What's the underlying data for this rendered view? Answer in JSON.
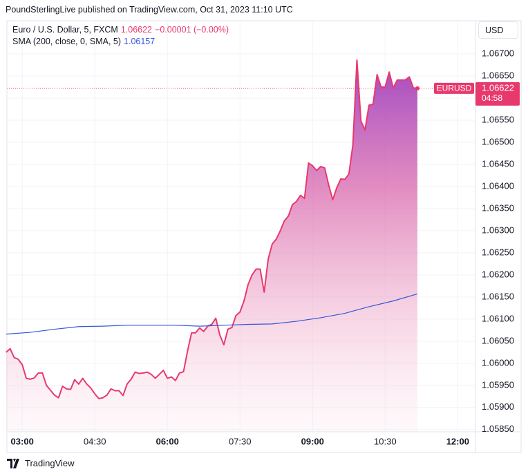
{
  "brand": "TradingView",
  "chart_data": {
    "type": "line",
    "title": "PoundSterlingLive published on TradingView.com, Oct 31, 2023 11:10 UTC",
    "currency": "USD",
    "symbol": "EURUSD",
    "countdown": "04:58",
    "change": "−0.00001 (−0.00%)",
    "x": [
      160,
      165,
      170,
      175,
      180,
      185,
      190,
      195,
      200,
      205,
      210,
      215,
      220,
      225,
      230,
      235,
      240,
      245,
      250,
      255,
      260,
      265,
      270,
      275,
      280,
      285,
      290,
      295,
      300,
      305,
      310,
      315,
      320,
      325,
      330,
      335,
      340,
      345,
      350,
      355,
      360,
      365,
      370,
      375,
      380,
      385,
      390,
      395,
      400,
      405,
      410,
      415,
      420,
      425,
      430,
      435,
      440,
      445,
      450,
      455,
      460,
      465,
      470,
      475,
      480,
      485,
      490,
      495,
      500,
      505,
      510,
      515,
      520,
      525,
      530,
      535,
      540,
      545,
      550,
      555,
      560,
      565,
      570,
      575,
      580,
      585,
      590,
      595,
      600,
      605,
      610,
      615,
      620,
      625,
      630,
      635,
      640,
      645,
      650,
      655,
      660,
      665,
      670
    ],
    "series": [
      {
        "name": "Euro / U.S. Dollar, 5, FXCM",
        "color": "#e8396d",
        "values": [
          1.06025,
          1.06033,
          1.06013,
          1.06009,
          1.05997,
          1.05966,
          1.05964,
          1.05967,
          1.05978,
          1.05978,
          1.0595,
          1.05939,
          1.05928,
          1.05922,
          1.05948,
          1.05942,
          1.05941,
          1.05963,
          1.05953,
          1.05966,
          1.05953,
          1.05944,
          1.05931,
          1.0592,
          1.05922,
          1.05928,
          1.05942,
          1.05938,
          1.05938,
          1.05927,
          1.05953,
          1.05964,
          1.0598,
          1.05977,
          1.05978,
          1.0598,
          1.05975,
          1.05966,
          1.05975,
          1.05984,
          1.05966,
          1.05969,
          1.05961,
          1.05978,
          1.05981,
          1.06028,
          1.06069,
          1.06069,
          1.0608,
          1.06072,
          1.06084,
          1.06088,
          1.06102,
          1.06064,
          1.06042,
          1.06077,
          1.06081,
          1.06108,
          1.06116,
          1.06141,
          1.06178,
          1.062,
          1.06213,
          1.06213,
          1.06161,
          1.06236,
          1.0627,
          1.06281,
          1.063,
          1.06322,
          1.06333,
          1.06359,
          1.06366,
          1.0638,
          1.06373,
          1.06453,
          1.06447,
          1.06436,
          1.06445,
          1.06442,
          1.06403,
          1.0637,
          1.06397,
          1.06417,
          1.06416,
          1.06428,
          1.06494,
          1.06686,
          1.06548,
          1.06528,
          1.06584,
          1.06586,
          1.06653,
          1.06625,
          1.06625,
          1.06659,
          1.06623,
          1.06641,
          1.06641,
          1.06641,
          1.06648,
          1.06623,
          1.06622
        ]
      },
      {
        "name": "SMA (200, close, 0, SMA, 5)",
        "color": "#3455db",
        "x": [
          160,
          190,
          220,
          250,
          280,
          310,
          340,
          370,
          400,
          430,
          460,
          490,
          520,
          550,
          580,
          610,
          640,
          670
        ],
        "values": [
          1.06066,
          1.0607,
          1.06077,
          1.06083,
          1.06084,
          1.06086,
          1.06086,
          1.06086,
          1.06084,
          1.06086,
          1.06088,
          1.06089,
          1.06095,
          1.06103,
          1.06113,
          1.06128,
          1.06141,
          1.06157
        ]
      }
    ],
    "area": true,
    "xlim": [
      161,
      742
    ],
    "xticks": [
      {
        "value": 180,
        "label": "03:00"
      },
      {
        "value": 270,
        "label": "04:30"
      },
      {
        "value": 360,
        "label": "06:00"
      },
      {
        "value": 450,
        "label": "07:30"
      },
      {
        "value": 540,
        "label": "09:00"
      },
      {
        "value": 630,
        "label": "10:30"
      },
      {
        "value": 720,
        "label": "12:00"
      }
    ],
    "ylim": [
      1.05845,
      1.06775
    ],
    "yticks": [
      {
        "value": 1.0585,
        "label": "1.05850"
      },
      {
        "value": 1.059,
        "label": "1.05900"
      },
      {
        "value": 1.0595,
        "label": "1.05950"
      },
      {
        "value": 1.06,
        "label": "1.06000"
      },
      {
        "value": 1.0605,
        "label": "1.06050"
      },
      {
        "value": 1.061,
        "label": "1.06100"
      },
      {
        "value": 1.0615,
        "label": "1.06150"
      },
      {
        "value": 1.062,
        "label": "1.06200"
      },
      {
        "value": 1.0625,
        "label": "1.06250"
      },
      {
        "value": 1.063,
        "label": "1.06300"
      },
      {
        "value": 1.0635,
        "label": "1.06350"
      },
      {
        "value": 1.064,
        "label": "1.06400"
      },
      {
        "value": 1.0645,
        "label": "1.06450"
      },
      {
        "value": 1.065,
        "label": "1.06500"
      },
      {
        "value": 1.0655,
        "label": "1.06550"
      },
      {
        "value": 1.066,
        "label": "1.06600"
      },
      {
        "value": 1.0665,
        "label": "1.06650"
      },
      {
        "value": 1.067,
        "label": "1.06700"
      }
    ],
    "grid": true
  }
}
